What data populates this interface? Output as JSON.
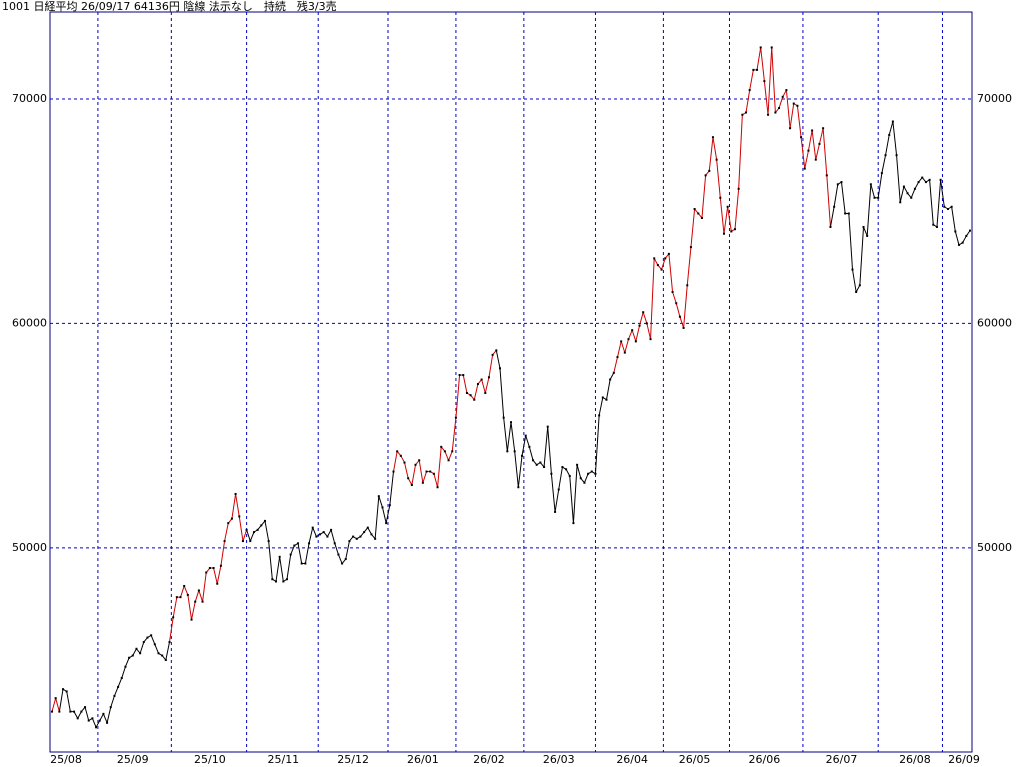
{
  "chart_data": {
    "type": "line",
    "title": "1001 日経平均 26/09/17 64136円 陰線 法示なし　持続　残3/3売",
    "categories": [
      null,
      null,
      null,
      "25/08",
      null,
      null,
      null,
      null,
      null,
      null,
      null,
      null,
      null,
      null,
      null,
      null,
      null,
      null,
      null,
      null,
      null,
      null,
      "25/09",
      null,
      null,
      null,
      null,
      null,
      null,
      null,
      null,
      null,
      null,
      null,
      null,
      null,
      null,
      null,
      null,
      null,
      null,
      null,
      null,
      "25/10",
      null,
      null,
      null,
      null,
      null,
      null,
      null,
      null,
      null,
      null,
      null,
      null,
      null,
      null,
      null,
      null,
      null,
      null,
      null,
      "25/11",
      null,
      null,
      null,
      null,
      null,
      null,
      null,
      null,
      null,
      null,
      null,
      null,
      null,
      null,
      null,
      null,
      null,
      null,
      "25/12",
      null,
      null,
      null,
      null,
      null,
      null,
      null,
      null,
      null,
      null,
      null,
      null,
      null,
      null,
      null,
      null,
      null,
      null,
      "26/01",
      null,
      null,
      null,
      null,
      null,
      null,
      null,
      null,
      null,
      null,
      null,
      null,
      null,
      null,
      null,
      null,
      null,
      "26/02",
      null,
      null,
      null,
      null,
      null,
      null,
      null,
      null,
      null,
      null,
      null,
      null,
      null,
      null,
      null,
      null,
      null,
      null,
      "26/03",
      null,
      null,
      null,
      null,
      null,
      null,
      null,
      null,
      null,
      null,
      null,
      null,
      null,
      null,
      null,
      null,
      null,
      null,
      null,
      "26/04",
      null,
      null,
      null,
      null,
      null,
      null,
      null,
      null,
      null,
      null,
      null,
      null,
      null,
      null,
      null,
      null,
      "26/05",
      null,
      null,
      null,
      null,
      null,
      null,
      null,
      null,
      null,
      null,
      null,
      null,
      null,
      null,
      null,
      null,
      null,
      null,
      "26/06",
      null,
      null,
      null,
      null,
      null,
      null,
      null,
      null,
      null,
      null,
      null,
      null,
      null,
      null,
      null,
      null,
      null,
      null,
      null,
      null,
      "26/07",
      null,
      null,
      null,
      null,
      null,
      null,
      null,
      null,
      null,
      null,
      null,
      null,
      null,
      null,
      null,
      null,
      null,
      null,
      null,
      "26/08",
      null,
      null,
      null,
      null,
      null,
      null,
      null,
      null,
      null,
      null,
      null,
      null,
      null,
      null,
      "26/09"
    ],
    "values": [
      42700,
      43300,
      42700,
      43700,
      43600,
      42700,
      42700,
      42400,
      42700,
      42900,
      42300,
      42400,
      42000,
      42300,
      42600,
      42200,
      42900,
      43400,
      43800,
      44200,
      44700,
      45100,
      45200,
      45500,
      45300,
      45800,
      46000,
      46100,
      45700,
      45300,
      45200,
      45000,
      45800,
      46900,
      47800,
      47800,
      48300,
      47900,
      46800,
      47600,
      48100,
      47600,
      48900,
      49100,
      49100,
      48400,
      49200,
      50300,
      51100,
      51300,
      52400,
      51400,
      50300,
      50800,
      50300,
      50700,
      50800,
      51000,
      51200,
      50300,
      48600,
      48500,
      49600,
      48500,
      48600,
      49700,
      50100,
      50200,
      49300,
      49300,
      50200,
      50900,
      50500,
      50600,
      50700,
      50500,
      50800,
      50200,
      49700,
      49300,
      49500,
      50300,
      50500,
      50400,
      50500,
      50700,
      50900,
      50600,
      50400,
      52300,
      51800,
      51100,
      51900,
      53400,
      54300,
      54100,
      53800,
      53100,
      52800,
      53700,
      53900,
      52900,
      53400,
      53400,
      53300,
      52700,
      54500,
      54300,
      53900,
      54300,
      55800,
      57700,
      57700,
      56900,
      56800,
      56600,
      57300,
      57500,
      56900,
      57600,
      58600,
      58800,
      58000,
      55800,
      54300,
      55600,
      54300,
      52700,
      54100,
      55000,
      54500,
      53900,
      53700,
      53800,
      53600,
      55400,
      53300,
      51600,
      52600,
      53600,
      53500,
      53200,
      51100,
      53700,
      53100,
      52900,
      53300,
      53400,
      53300,
      55900,
      56700,
      56600,
      57500,
      57800,
      58500,
      59200,
      58700,
      59300,
      59700,
      59200,
      59900,
      60500,
      60000,
      59300,
      62900,
      62600,
      62400,
      62900,
      63100,
      61400,
      60900,
      60300,
      59800,
      61700,
      63400,
      65100,
      64900,
      64700,
      66600,
      66800,
      68300,
      67300,
      65600,
      64000,
      65200,
      64100,
      64200,
      66000,
      69300,
      69400,
      70400,
      71300,
      71300,
      72300,
      70800,
      69300,
      72300,
      69400,
      69600,
      70100,
      70400,
      68700,
      69800,
      69700,
      68300,
      66900,
      67700,
      68600,
      67300,
      68000,
      68700,
      66600,
      64300,
      65200,
      66200,
      66300,
      64900,
      64900,
      62400,
      61400,
      61700,
      64300,
      63900,
      66200,
      65600,
      65600,
      66700,
      67500,
      68400,
      69000,
      67500,
      65400,
      66100,
      65800,
      65600,
      66000,
      66300,
      66500,
      66300,
      66400,
      64400,
      64300,
      66400,
      65200,
      65100,
      65200,
      64100,
      63500,
      63600,
      63900,
      64136
    ],
    "colors": [
      "#d00000",
      "#d00000",
      "#d00000",
      "#000000",
      "#000000",
      "#000000",
      "#000000",
      "#000000",
      "#000000",
      "#000000",
      "#000000",
      "#000000",
      "#000000",
      "#000000",
      "#000000",
      "#000000",
      "#000000",
      "#000000",
      "#000000",
      "#000000",
      "#000000",
      "#000000",
      "#000000",
      "#000000",
      "#000000",
      "#000000",
      "#000000",
      "#000000",
      "#000000",
      "#000000",
      "#000000",
      "#000000",
      "#000000",
      "#d00000",
      "#d00000",
      "#d00000",
      "#d00000",
      "#d00000",
      "#d00000",
      "#d00000",
      "#d00000",
      "#d00000",
      "#d00000",
      "#d00000",
      "#d00000",
      "#d00000",
      "#d00000",
      "#d00000",
      "#d00000",
      "#d00000",
      "#d00000",
      "#d00000",
      "#d00000",
      "#d00000",
      "#000000",
      "#000000",
      "#000000",
      "#000000",
      "#000000",
      "#000000",
      "#000000",
      "#000000",
      "#000000",
      "#000000",
      "#000000",
      "#000000",
      "#000000",
      "#000000",
      "#000000",
      "#000000",
      "#000000",
      "#000000",
      "#000000",
      "#000000",
      "#000000",
      "#000000",
      "#000000",
      "#000000",
      "#000000",
      "#000000",
      "#000000",
      "#000000",
      "#000000",
      "#000000",
      "#000000",
      "#000000",
      "#000000",
      "#000000",
      "#000000",
      "#000000",
      "#000000",
      "#000000",
      "#000000",
      "#000000",
      "#d00000",
      "#d00000",
      "#d00000",
      "#d00000",
      "#d00000",
      "#d00000",
      "#d00000",
      "#d00000",
      "#d00000",
      "#d00000",
      "#d00000",
      "#d00000",
      "#d00000",
      "#d00000",
      "#d00000",
      "#d00000",
      "#d00000",
      "#d00000",
      "#d00000",
      "#d00000",
      "#d00000",
      "#d00000",
      "#d00000",
      "#d00000",
      "#d00000",
      "#d00000",
      "#d00000",
      "#d00000",
      "#000000",
      "#000000",
      "#000000",
      "#000000",
      "#000000",
      "#000000",
      "#000000",
      "#000000",
      "#000000",
      "#000000",
      "#000000",
      "#000000",
      "#000000",
      "#000000",
      "#000000",
      "#000000",
      "#000000",
      "#000000",
      "#000000",
      "#000000",
      "#000000",
      "#000000",
      "#000000",
      "#000000",
      "#000000",
      "#000000",
      "#000000",
      "#000000",
      "#000000",
      "#000000",
      "#000000",
      "#000000",
      "#d00000",
      "#d00000",
      "#d00000",
      "#d00000",
      "#d00000",
      "#d00000",
      "#d00000",
      "#d00000",
      "#d00000",
      "#d00000",
      "#d00000",
      "#d00000",
      "#d00000",
      "#d00000",
      "#d00000",
      "#d00000",
      "#d00000",
      "#d00000",
      "#d00000",
      "#d00000",
      "#d00000",
      "#d00000",
      "#d00000",
      "#d00000",
      "#d00000",
      "#d00000",
      "#d00000",
      "#d00000",
      "#d00000",
      "#d00000",
      "#d00000",
      "#d00000",
      "#d00000",
      "#d00000",
      "#d00000",
      "#d00000",
      "#d00000",
      "#d00000",
      "#d00000",
      "#d00000",
      "#d00000",
      "#d00000",
      "#d00000",
      "#d00000",
      "#d00000",
      "#d00000",
      "#d00000",
      "#d00000",
      "#d00000",
      "#d00000",
      "#d00000",
      "#d00000",
      "#d00000",
      "#d00000",
      "#d00000",
      "#d00000",
      "#d00000",
      "#d00000",
      "#d00000",
      "#000000",
      "#000000",
      "#000000",
      "#000000",
      "#000000",
      "#000000",
      "#000000",
      "#000000",
      "#000000",
      "#000000",
      "#000000",
      "#000000",
      "#000000",
      "#000000",
      "#000000",
      "#000000",
      "#000000",
      "#000000",
      "#000000",
      "#000000",
      "#000000",
      "#000000",
      "#000000",
      "#000000",
      "#000000",
      "#000000",
      "#000000",
      "#000000",
      "#000000",
      "#000000",
      "#000000",
      "#000000",
      "#000000",
      "#000000",
      "#000000",
      "#000000",
      "#000000",
      "#000000"
    ],
    "ylim": [
      40900,
      73880
    ],
    "yticks": [
      50000,
      60000,
      70000
    ],
    "grid": true
  }
}
